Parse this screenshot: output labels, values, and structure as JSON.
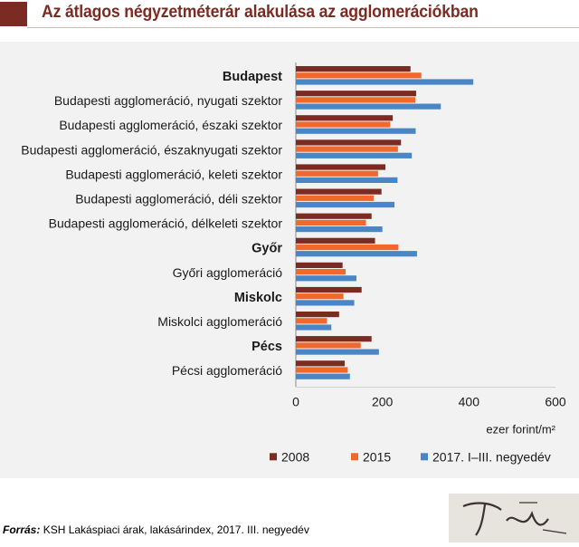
{
  "title": "Az átlagos négyzetméterár alakulása az agglomerációkban",
  "source_label": "Forrás:",
  "source_text": "KSH Lakáspiaci árak, lakásárindex, 2017. III. negyedév",
  "chart_data": {
    "type": "bar",
    "orientation": "horizontal",
    "title": "",
    "xlabel": "ezer forint/m²",
    "ylabel": "",
    "xlim": [
      0,
      600
    ],
    "xticks": [
      0,
      200,
      400,
      600
    ],
    "grid": false,
    "legend_position": "bottom",
    "categories": [
      "Budapest",
      "Budapesti agglomeráció, nyugati szektor",
      "Budapesti agglomeráció, északi szektor",
      "Budapesti agglomeráció, északnyugati szektor",
      "Budapesti agglomeráció, keleti szektor",
      "Budapesti agglomeráció, déli szektor",
      "Budapesti agglomeráció, délkeleti szektor",
      "Győr",
      "Győri agglomeráció",
      "Miskolc",
      "Miskolci agglomeráció",
      "Pécs",
      "Pécsi agglomeráció"
    ],
    "bold_categories": [
      "Budapest",
      "Győr",
      "Miskolc",
      "Pécs"
    ],
    "series": [
      {
        "name": "2008",
        "color": "#7b2b22",
        "values": [
          265,
          278,
          224,
          243,
          207,
          198,
          175,
          183,
          108,
          152,
          100,
          175,
          113
        ]
      },
      {
        "name": "2015",
        "color": "#f0682a",
        "values": [
          290,
          276,
          218,
          236,
          190,
          180,
          162,
          237,
          115,
          110,
          72,
          150,
          120
        ]
      },
      {
        "name": "2017. I–III. negyedév",
        "color": "#4a86c6",
        "values": [
          410,
          335,
          277,
          268,
          235,
          228,
          200,
          280,
          140,
          135,
          82,
          192,
          125
        ]
      }
    ]
  }
}
